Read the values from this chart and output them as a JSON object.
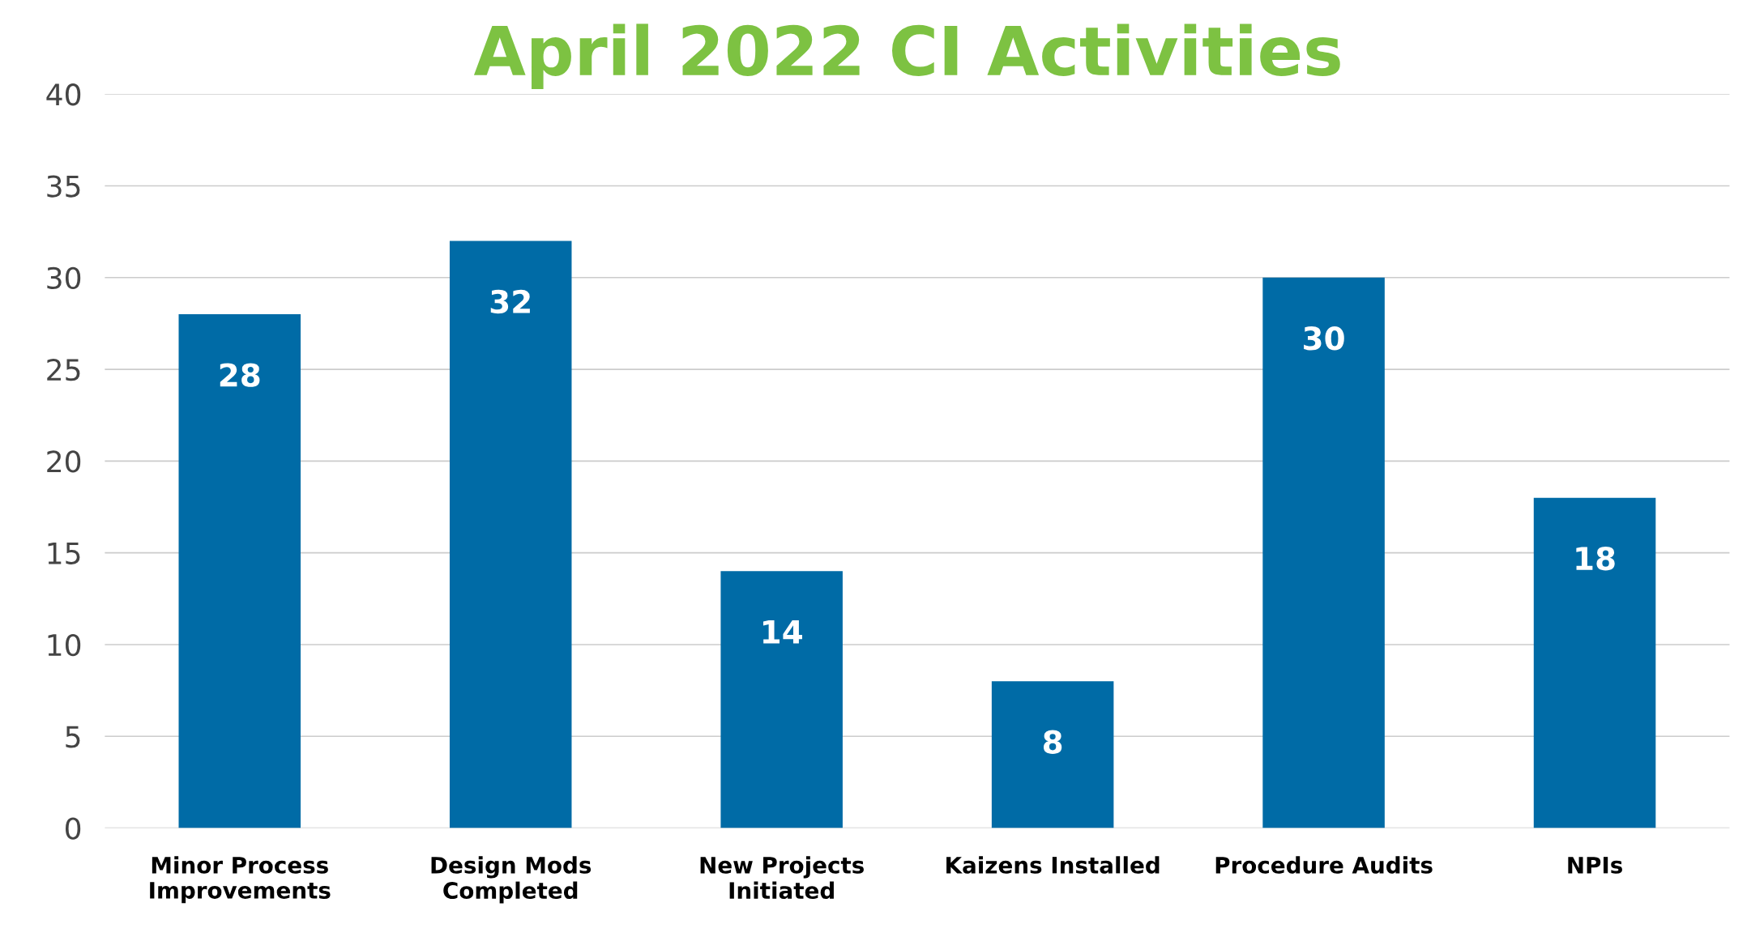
{
  "chart_data": {
    "type": "bar",
    "title": "April 2022 CI Activities",
    "categories": [
      "Minor Process Improvements",
      "Design Mods Completed",
      "New Projects Initiated",
      "Kaizens Installed",
      "Procedure Audits",
      "NPIs"
    ],
    "values": [
      28,
      32,
      14,
      8,
      30,
      18
    ],
    "color": "#006ba6",
    "ylim": [
      0,
      40
    ],
    "yticks": [
      0,
      5,
      10,
      15,
      20,
      25,
      30,
      35,
      40
    ],
    "grid": "y",
    "data_labels": true
  }
}
